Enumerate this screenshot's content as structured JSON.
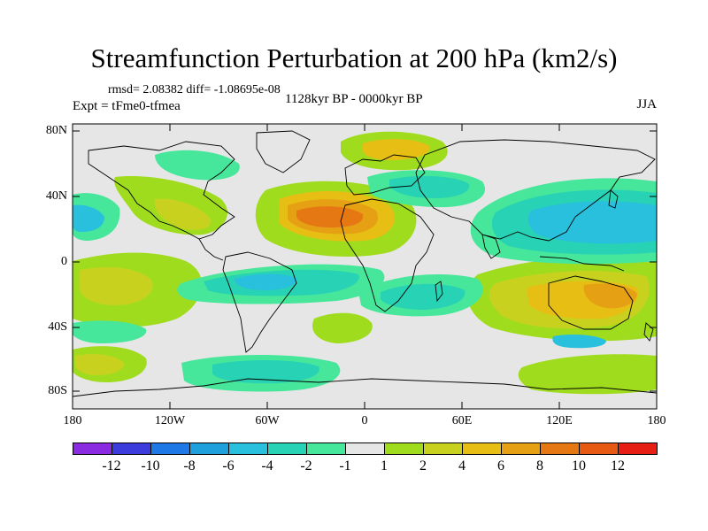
{
  "title": "Streamfunction Perturbation at 200 hPa (km2/s)",
  "stats": "rmsd= 2.08382 diff= -1.08695e-08",
  "experiment": "Expt = tFme0-tfmea",
  "period": "1128kyr BP - 0000kyr BP",
  "season": "JJA",
  "map": {
    "lat_labels": [
      "80N",
      "40N",
      "0",
      "40S",
      "80S"
    ],
    "lon_labels": [
      "180",
      "120W",
      "60W",
      "0",
      "60E",
      "120E",
      "180"
    ],
    "background_color": "#e6e6e6"
  },
  "colorbar": {
    "colors": [
      "#8a2be2",
      "#3c3cdc",
      "#1e78e6",
      "#1ea0dc",
      "#28c0dc",
      "#28d2b4",
      "#46e69b",
      "#e6e6e6",
      "#a0dc1e",
      "#c8d21e",
      "#e6be14",
      "#e6a014",
      "#e67814",
      "#e65a14",
      "#e61e14"
    ],
    "labels": [
      "-12",
      "-10",
      "-8",
      "-6",
      "-4",
      "-2",
      "-1",
      "1",
      "2",
      "4",
      "6",
      "8",
      "10",
      "12"
    ]
  },
  "anomaly_regions": [
    {
      "name": "north-atlantic-high",
      "level": 6
    },
    {
      "name": "arctic-high",
      "level": 2
    },
    {
      "name": "west-pacific-low",
      "level": -3
    },
    {
      "name": "australia-high",
      "level": 5
    },
    {
      "name": "south-pacific-low",
      "level": -4
    },
    {
      "name": "east-pacific-high",
      "level": 3
    }
  ]
}
